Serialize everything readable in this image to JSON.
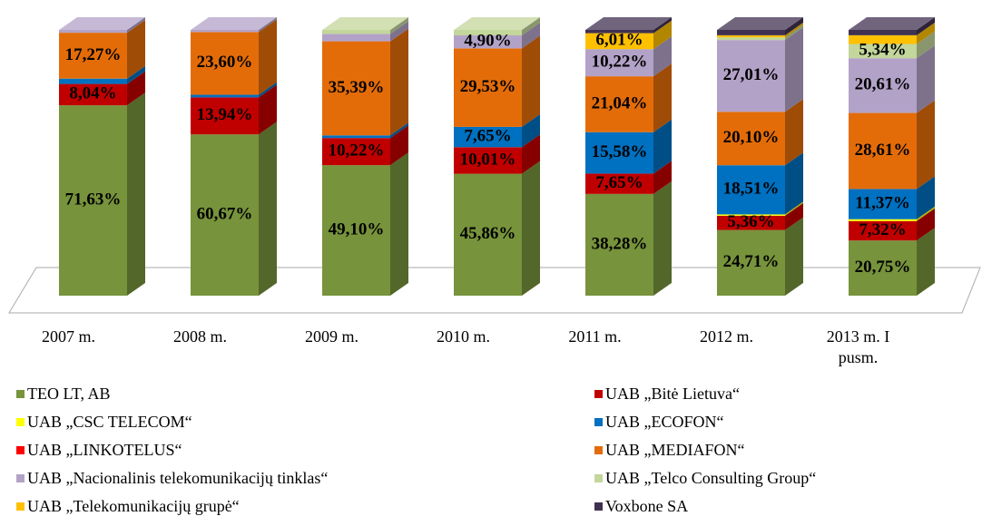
{
  "chart_data": {
    "type": "bar3d_stacked",
    "categories": [
      "2007 m.",
      "2008 m.",
      "2009 m.",
      "2010 m.",
      "2011 m.",
      "2012 m.",
      "2013 m. I pusm."
    ],
    "ylim": [
      0,
      100
    ],
    "series": [
      {
        "name": "TEO LT, AB",
        "color": "#77933c",
        "values": [
          71.63,
          60.67,
          49.1,
          45.86,
          38.28,
          24.71,
          20.75
        ],
        "value_labels": [
          "71,63%",
          "60,67%",
          "49,10%",
          "45,86%",
          "38,28%",
          "24,71%",
          "20,75%"
        ]
      },
      {
        "name": "UAB „Bitė Lietuva“",
        "color": "#c00000",
        "values": [
          8.04,
          13.94,
          10.22,
          10.01,
          7.65,
          5.36,
          7.32
        ],
        "value_labels": [
          "8,04%",
          "13,94%",
          "10,22%",
          "10,01%",
          "7,65%",
          "5,36%",
          "7,32%"
        ]
      },
      {
        "name": "UAB „CSC TELECOM“",
        "color": "#ffff00",
        "values": [
          0,
          0,
          0,
          0,
          0,
          0.5,
          0.7
        ],
        "value_labels": [
          null,
          null,
          null,
          null,
          null,
          null,
          null
        ]
      },
      {
        "name": "UAB „ECOFON“",
        "color": "#0070c0",
        "values": [
          2.0,
          1.0,
          1.0,
          7.65,
          15.58,
          18.51,
          11.37
        ],
        "value_labels": [
          null,
          null,
          null,
          "7,65%",
          "15,58%",
          "18,51%",
          "11,37%"
        ]
      },
      {
        "name": "UAB „LINKOTELUS“",
        "color": "#ff0000",
        "values": [
          0,
          0,
          0,
          0,
          0,
          0,
          0
        ],
        "value_labels": [
          null,
          null,
          null,
          null,
          null,
          null,
          null
        ]
      },
      {
        "name": "UAB „MEDIAFON“",
        "color": "#e36c09",
        "values": [
          17.27,
          23.6,
          35.39,
          29.53,
          21.04,
          20.1,
          28.61
        ],
        "value_labels": [
          "17,27%",
          "23,60%",
          "35,39%",
          "29,53%",
          "21,04%",
          "20,10%",
          "28,61%"
        ]
      },
      {
        "name": "UAB „Nacionalinis telekomunikacijų tinklas“",
        "color": "#b3a2c7",
        "values": [
          1.06,
          0.79,
          2.8,
          4.9,
          10.22,
          27.01,
          20.61
        ],
        "value_labels": [
          null,
          null,
          null,
          "4,90%",
          "10,22%",
          "27,01%",
          "20,61%"
        ]
      },
      {
        "name": "UAB „Telco Consulting Group“",
        "color": "#c3d69b",
        "values": [
          0,
          0,
          1.49,
          2.05,
          0,
          1.0,
          5.34
        ],
        "value_labels": [
          null,
          null,
          null,
          null,
          null,
          null,
          "5,34%"
        ]
      },
      {
        "name": "UAB „Telekomunikacijų grupė“",
        "color": "#ffc000",
        "values": [
          0,
          0,
          0,
          0,
          6.01,
          0.8,
          3.3
        ],
        "value_labels": [
          null,
          null,
          null,
          null,
          "6,01%",
          null,
          null
        ]
      },
      {
        "name": "Voxbone SA",
        "color": "#403151",
        "values": [
          0,
          0,
          0,
          0,
          1.22,
          2.01,
          2.0
        ],
        "value_labels": [
          null,
          null,
          null,
          null,
          null,
          null,
          null
        ]
      }
    ]
  }
}
